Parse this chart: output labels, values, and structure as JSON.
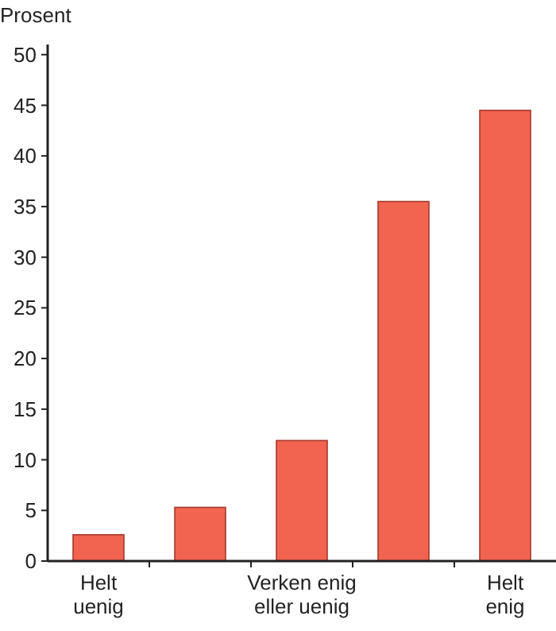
{
  "chart_data": {
    "type": "bar",
    "ylabel": "Prosent",
    "categories": [
      "Helt uenig",
      null,
      "Verken enig eller uenig",
      null,
      "Helt enig"
    ],
    "values": [
      2.6,
      5.3,
      11.9,
      35.5,
      44.5
    ],
    "color": "#f26350",
    "ylim": [
      0,
      51
    ],
    "yticks": [
      0,
      5,
      10,
      15,
      20,
      25,
      30,
      35,
      40,
      45,
      50
    ],
    "grid": false
  }
}
